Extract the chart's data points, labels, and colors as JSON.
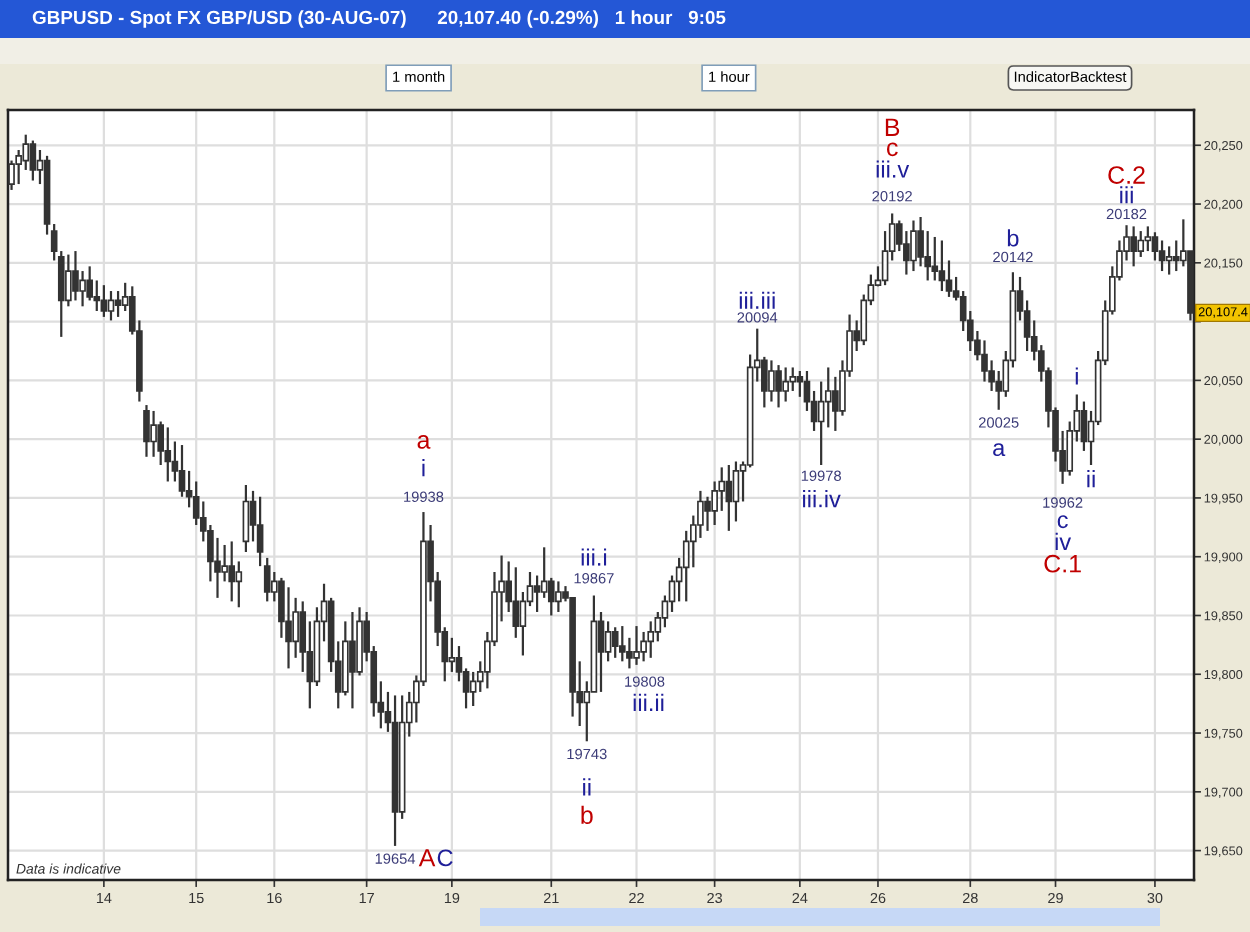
{
  "chart_data": {
    "type": "candlestick",
    "title": "GBPUSD - Spot FX GBP/USD (30-AUG-07)",
    "subtitle": "20,107.40 (-0.29%)   1 hour   9:05",
    "color": "#333333",
    "grid": true,
    "categories": [
      null,
      null,
      null,
      null,
      null,
      null,
      null,
      null,
      null,
      null,
      null,
      null,
      null,
      "14",
      null,
      null,
      null,
      null,
      null,
      null,
      null,
      null,
      null,
      null,
      null,
      null,
      "15",
      null,
      null,
      null,
      null,
      null,
      null,
      null,
      null,
      null,
      null,
      "16",
      null,
      null,
      null,
      null,
      null,
      null,
      null,
      null,
      null,
      null,
      null,
      null,
      "17",
      null,
      null,
      null,
      null,
      null,
      null,
      null,
      null,
      null,
      null,
      null,
      "19",
      null,
      null,
      null,
      null,
      null,
      null,
      null,
      null,
      null,
      null,
      null,
      null,
      null,
      "21",
      null,
      null,
      null,
      null,
      null,
      null,
      null,
      null,
      null,
      null,
      null,
      "22",
      null,
      null,
      null,
      null,
      null,
      null,
      null,
      null,
      null,
      null,
      "23",
      null,
      null,
      null,
      null,
      null,
      null,
      null,
      null,
      null,
      null,
      null,
      "24",
      null,
      null,
      null,
      null,
      null,
      null,
      null,
      null,
      null,
      null,
      "26",
      null,
      null,
      null,
      null,
      null,
      null,
      null,
      null,
      null,
      null,
      null,
      null,
      "28",
      null,
      null,
      null,
      null,
      null,
      null,
      null,
      null,
      null,
      null,
      null,
      "29",
      null,
      null,
      null,
      null,
      null,
      null,
      null,
      null,
      null,
      null,
      null,
      null,
      null,
      "30",
      null,
      null,
      null,
      null,
      null
    ],
    "ohlc": [
      [
        20217,
        20237,
        20212,
        20234
      ],
      [
        20234,
        20246,
        20217,
        20241
      ],
      [
        20237,
        20259,
        20229,
        20251
      ],
      [
        20251,
        20254,
        20220,
        20229
      ],
      [
        20229,
        20246,
        20217,
        20237
      ],
      [
        20237,
        20241,
        20174,
        20183
      ],
      [
        20177,
        20183,
        20152,
        20160
      ],
      [
        20155,
        20160,
        20087,
        20118
      ],
      [
        20118,
        20157,
        20113,
        20143
      ],
      [
        20143,
        20160,
        20118,
        20126
      ],
      [
        20126,
        20143,
        20113,
        20135
      ],
      [
        20135,
        20147,
        20118,
        20121
      ],
      [
        20121,
        20135,
        20109,
        20118
      ],
      [
        20118,
        20131,
        20104,
        20109
      ],
      [
        20109,
        20126,
        20101,
        20118
      ],
      [
        20118,
        20126,
        20104,
        20114
      ],
      [
        20114,
        20133,
        20109,
        20121
      ],
      [
        20121,
        20130,
        20089,
        20092
      ],
      [
        20092,
        20101,
        20032,
        20041
      ],
      [
        20024,
        20029,
        19985,
        19998
      ],
      [
        19998,
        20024,
        19985,
        20012
      ],
      [
        20012,
        20015,
        19978,
        19990
      ],
      [
        19990,
        20010,
        19964,
        19981
      ],
      [
        19981,
        19998,
        19964,
        19973
      ],
      [
        19973,
        19995,
        19951,
        19956
      ],
      [
        19956,
        19973,
        19942,
        19951
      ],
      [
        19951,
        19964,
        19927,
        19933
      ],
      [
        19933,
        19947,
        19913,
        19922
      ],
      [
        19922,
        19927,
        19879,
        19896
      ],
      [
        19896,
        19916,
        19865,
        19887
      ],
      [
        19887,
        19910,
        19879,
        19892
      ],
      [
        19892,
        19913,
        19862,
        19879
      ],
      [
        19879,
        19896,
        19857,
        19887
      ],
      [
        19913,
        19961,
        19904,
        19947
      ],
      [
        19947,
        19956,
        19913,
        19927
      ],
      [
        19927,
        19951,
        19892,
        19904
      ],
      [
        19892,
        19899,
        19862,
        19870
      ],
      [
        19870,
        19887,
        19862,
        19879
      ],
      [
        19879,
        19882,
        19831,
        19845
      ],
      [
        19845,
        19874,
        19805,
        19828
      ],
      [
        19828,
        19865,
        19814,
        19853
      ],
      [
        19853,
        19862,
        19802,
        19819
      ],
      [
        19819,
        19845,
        19771,
        19794
      ],
      [
        19794,
        19857,
        19790,
        19845
      ],
      [
        19845,
        19877,
        19828,
        19862
      ],
      [
        19862,
        19865,
        19802,
        19811
      ],
      [
        19811,
        19828,
        19771,
        19785
      ],
      [
        19785,
        19845,
        19782,
        19828
      ],
      [
        19828,
        19853,
        19771,
        19802
      ],
      [
        19802,
        19857,
        19799,
        19845
      ],
      [
        19845,
        19853,
        19811,
        19819
      ],
      [
        19819,
        19824,
        19764,
        19776
      ],
      [
        19776,
        19794,
        19754,
        19768
      ],
      [
        19768,
        19785,
        19751,
        19759
      ],
      [
        19759,
        19782,
        19654,
        19683
      ],
      [
        19683,
        19782,
        19677,
        19759
      ],
      [
        19759,
        19785,
        19747,
        19776
      ],
      [
        19776,
        19799,
        19759,
        19794
      ],
      [
        19794,
        19938,
        19790,
        19913
      ],
      [
        19913,
        19927,
        19862,
        19879
      ],
      [
        19879,
        19887,
        19824,
        19836
      ],
      [
        19836,
        19840,
        19794,
        19811
      ],
      [
        19811,
        19831,
        19802,
        19814
      ],
      [
        19814,
        19824,
        19794,
        19802
      ],
      [
        19802,
        19805,
        19771,
        19785
      ],
      [
        19785,
        19802,
        19773,
        19794
      ],
      [
        19794,
        19811,
        19785,
        19802
      ],
      [
        19802,
        19836,
        19788,
        19828
      ],
      [
        19828,
        19887,
        19824,
        19870
      ],
      [
        19870,
        19901,
        19845,
        19879
      ],
      [
        19879,
        19896,
        19853,
        19862
      ],
      [
        19862,
        19891,
        19831,
        19841
      ],
      [
        19841,
        19870,
        19816,
        19862
      ],
      [
        19862,
        19887,
        19858,
        19875
      ],
      [
        19875,
        19884,
        19853,
        19870
      ],
      [
        19870,
        19908,
        19865,
        19879
      ],
      [
        19879,
        19882,
        19850,
        19862
      ],
      [
        19862,
        19879,
        19853,
        19870
      ],
      [
        19870,
        19875,
        19862,
        19865
      ],
      [
        19865,
        19865,
        19764,
        19785
      ],
      [
        19785,
        19811,
        19756,
        19776
      ],
      [
        19776,
        19794,
        19743,
        19785
      ],
      [
        19785,
        19867,
        19785,
        19845
      ],
      [
        19845,
        19853,
        19785,
        19819
      ],
      [
        19819,
        19845,
        19811,
        19836
      ],
      [
        19836,
        19840,
        19814,
        19824
      ],
      [
        19824,
        19841,
        19811,
        19819
      ],
      [
        19819,
        19831,
        19805,
        19814
      ],
      [
        19814,
        19841,
        19808,
        19819
      ],
      [
        19819,
        19836,
        19811,
        19828
      ],
      [
        19828,
        19845,
        19814,
        19836
      ],
      [
        19836,
        19853,
        19828,
        19848
      ],
      [
        19848,
        19867,
        19840,
        19862
      ],
      [
        19862,
        19884,
        19853,
        19879
      ],
      [
        19879,
        19899,
        19862,
        19891
      ],
      [
        19891,
        19922,
        19862,
        19913
      ],
      [
        19913,
        19935,
        19891,
        19927
      ],
      [
        19927,
        19956,
        19916,
        19947
      ],
      [
        19947,
        19951,
        19922,
        19939
      ],
      [
        19939,
        19964,
        19927,
        19956
      ],
      [
        19956,
        19976,
        19939,
        19964
      ],
      [
        19964,
        19978,
        19922,
        19947
      ],
      [
        19947,
        19981,
        19930,
        19973
      ],
      [
        19973,
        19981,
        19947,
        19978
      ],
      [
        19978,
        20072,
        19976,
        20061
      ],
      [
        20061,
        20094,
        20049,
        20067
      ],
      [
        20067,
        20070,
        20027,
        20041
      ],
      [
        20041,
        20067,
        20032,
        20058
      ],
      [
        20058,
        20063,
        20027,
        20041
      ],
      [
        20041,
        20061,
        20032,
        20049
      ],
      [
        20049,
        20061,
        20041,
        20053
      ],
      [
        20053,
        20058,
        20036,
        20049
      ],
      [
        20049,
        20058,
        20024,
        20032
      ],
      [
        20032,
        20041,
        20007,
        20015
      ],
      [
        20015,
        20049,
        19978,
        20032
      ],
      [
        20032,
        20061,
        20010,
        20041
      ],
      [
        20041,
        20053,
        20007,
        20024
      ],
      [
        20024,
        20067,
        20020,
        20058
      ],
      [
        20058,
        20106,
        20053,
        20092
      ],
      [
        20092,
        20101,
        20075,
        20084
      ],
      [
        20084,
        20123,
        20080,
        20118
      ],
      [
        20118,
        20140,
        20114,
        20131
      ],
      [
        20131,
        20147,
        20130,
        20135
      ],
      [
        20135,
        20177,
        20131,
        20160
      ],
      [
        20160,
        20192,
        20152,
        20183
      ],
      [
        20183,
        20186,
        20160,
        20166
      ],
      [
        20166,
        20177,
        20140,
        20152
      ],
      [
        20152,
        20186,
        20143,
        20177
      ],
      [
        20177,
        20189,
        20147,
        20155
      ],
      [
        20155,
        20177,
        20135,
        20147
      ],
      [
        20147,
        20172,
        20135,
        20143
      ],
      [
        20143,
        20169,
        20126,
        20135
      ],
      [
        20135,
        20152,
        20121,
        20126
      ],
      [
        20126,
        20138,
        20118,
        20121
      ],
      [
        20121,
        20126,
        20092,
        20101
      ],
      [
        20101,
        20109,
        20075,
        20084
      ],
      [
        20084,
        20092,
        20067,
        20072
      ],
      [
        20072,
        20084,
        20049,
        20058
      ],
      [
        20058,
        20067,
        20041,
        20049
      ],
      [
        20049,
        20058,
        20025,
        20041
      ],
      [
        20041,
        20075,
        20036,
        20067
      ],
      [
        20067,
        20142,
        20061,
        20126
      ],
      [
        20126,
        20138,
        20101,
        20109
      ],
      [
        20109,
        20118,
        20075,
        20087
      ],
      [
        20087,
        20101,
        20067,
        20075
      ],
      [
        20075,
        20080,
        20049,
        20058
      ],
      [
        20058,
        20061,
        20010,
        20024
      ],
      [
        20024,
        20027,
        19981,
        19990
      ],
      [
        19990,
        20007,
        19962,
        19973
      ],
      [
        19973,
        20015,
        19969,
        20007
      ],
      [
        20007,
        20038,
        19998,
        20024
      ],
      [
        20024,
        20032,
        19990,
        19998
      ],
      [
        19998,
        20024,
        19978,
        20015
      ],
      [
        20015,
        20075,
        20012,
        20067
      ],
      [
        20067,
        20118,
        20063,
        20109
      ],
      [
        20109,
        20147,
        20106,
        20138
      ],
      [
        20138,
        20169,
        20135,
        20160
      ],
      [
        20160,
        20182,
        20152,
        20172
      ],
      [
        20172,
        20181,
        20147,
        20160
      ],
      [
        20160,
        20177,
        20155,
        20169
      ],
      [
        20169,
        20181,
        20160,
        20172
      ],
      [
        20172,
        20176,
        20152,
        20160
      ],
      [
        20160,
        20169,
        20143,
        20152
      ],
      [
        20152,
        20164,
        20140,
        20155
      ],
      [
        20155,
        20169,
        20143,
        20152
      ],
      [
        20152,
        20187,
        20147,
        20160
      ],
      [
        20160,
        20160,
        20101,
        20107.4
      ]
    ],
    "ylim": [
      19625,
      20280
    ],
    "yticks": [
      {
        "value": 19650,
        "label": "19,650"
      },
      {
        "value": 19700,
        "label": "19,700"
      },
      {
        "value": 19750,
        "label": "19,750"
      },
      {
        "value": 19800,
        "label": "19,800"
      },
      {
        "value": 19850,
        "label": "19,850"
      },
      {
        "value": 19900,
        "label": "19,900"
      },
      {
        "value": 19950,
        "label": "19,950"
      },
      {
        "value": 20000,
        "label": "20,000"
      },
      {
        "value": 20050,
        "label": "20,050"
      },
      {
        "value": 20100,
        "label": null
      },
      {
        "value": 20150,
        "label": "20,150"
      },
      {
        "value": 20200,
        "label": "20,200"
      },
      {
        "value": 20250,
        "label": "20,250"
      }
    ],
    "annotations": [
      "1 month",
      "1 hour",
      "IndicatorBacktest",
      "Data is indicative",
      "a",
      "i",
      "19938",
      "19654",
      "A",
      "C",
      "iii.i",
      "19867",
      "19743",
      "ii",
      "b",
      "19808",
      "iii.ii",
      "iii.iii",
      "20094",
      "19978",
      "iii.iv",
      "B",
      "c",
      "iii.v",
      "20192",
      "b",
      "20142",
      "20025",
      "a",
      "i",
      "ii",
      "19962",
      "c",
      "iv",
      "C.1",
      "C.2",
      "iii",
      "20182",
      {
        "text": "20,107.4",
        "y": 20107.4
      }
    ]
  }
}
